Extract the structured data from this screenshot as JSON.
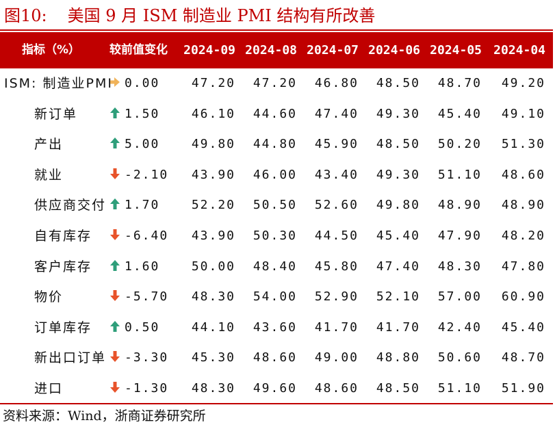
{
  "figure": {
    "number": "图10:",
    "title": "美国 9 月 ISM 制造业 PMI 结构有所改善"
  },
  "table": {
    "headers": {
      "indicator": "指标（%）",
      "change": "较前值变化",
      "months": [
        "2024-09",
        "2024-08",
        "2024-07",
        "2024-06",
        "2024-05",
        "2024-04"
      ]
    },
    "rows": [
      {
        "label": "ISM: 制造业PMI",
        "direction": "flat",
        "change": "0.00",
        "values": [
          "47.20",
          "47.20",
          "46.80",
          "48.50",
          "48.70",
          "49.20"
        ]
      },
      {
        "label": "新订单",
        "direction": "up",
        "change": "1.50",
        "values": [
          "46.10",
          "44.60",
          "47.40",
          "49.30",
          "45.40",
          "49.10"
        ]
      },
      {
        "label": "产出",
        "direction": "up",
        "change": "5.00",
        "values": [
          "49.80",
          "44.80",
          "45.90",
          "48.50",
          "50.20",
          "51.30"
        ]
      },
      {
        "label": "就业",
        "direction": "down",
        "change": "-2.10",
        "values": [
          "43.90",
          "46.00",
          "43.40",
          "49.30",
          "51.10",
          "48.60"
        ]
      },
      {
        "label": "供应商交付",
        "direction": "up",
        "change": "1.70",
        "values": [
          "52.20",
          "50.50",
          "52.60",
          "49.80",
          "48.90",
          "48.90"
        ]
      },
      {
        "label": "自有库存",
        "direction": "down",
        "change": "-6.40",
        "values": [
          "43.90",
          "50.30",
          "44.50",
          "45.40",
          "47.90",
          "48.20"
        ]
      },
      {
        "label": "客户库存",
        "direction": "up",
        "change": "1.60",
        "values": [
          "50.00",
          "48.40",
          "45.80",
          "47.40",
          "48.30",
          "47.80"
        ]
      },
      {
        "label": "物价",
        "direction": "down",
        "change": "-5.70",
        "values": [
          "48.30",
          "54.00",
          "52.90",
          "52.10",
          "57.00",
          "60.90"
        ]
      },
      {
        "label": "订单库存",
        "direction": "up",
        "change": "0.50",
        "values": [
          "44.10",
          "43.60",
          "41.70",
          "41.70",
          "42.40",
          "45.40"
        ]
      },
      {
        "label": "新出口订单",
        "direction": "down",
        "change": "-3.30",
        "values": [
          "45.30",
          "48.60",
          "49.00",
          "48.80",
          "50.60",
          "48.70"
        ]
      },
      {
        "label": "进口",
        "direction": "down",
        "change": "-1.30",
        "values": [
          "48.30",
          "49.60",
          "48.60",
          "48.50",
          "51.10",
          "51.90"
        ]
      }
    ]
  },
  "source": "资料来源：Wind，浙商证券研究所",
  "colors": {
    "accent": "#c00000",
    "up": "#2e9e7a",
    "down": "#e8532a",
    "flat": "#f0b35a"
  }
}
